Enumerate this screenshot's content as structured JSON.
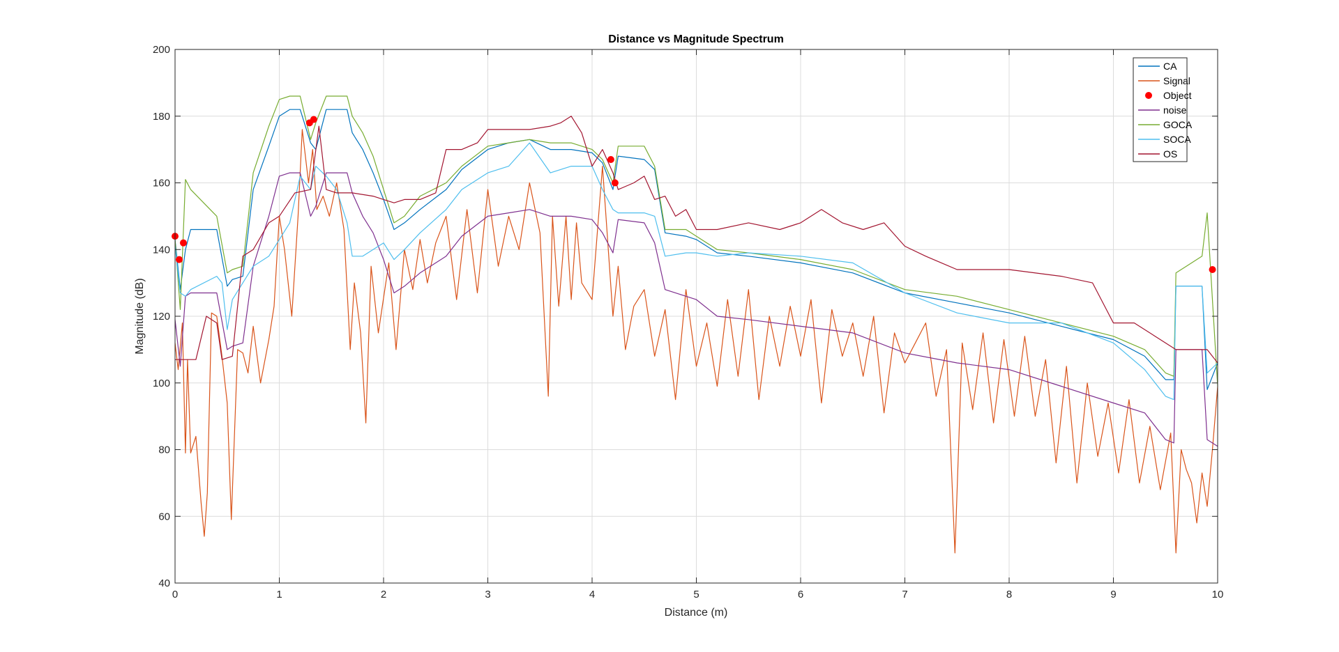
{
  "chart_data": {
    "type": "line",
    "title": "Distance vs Magnitude Spectrum",
    "xlabel": "Distance (m)",
    "ylabel": "Magnitude (dB)",
    "xlim": [
      0,
      10
    ],
    "ylim": [
      40,
      200
    ],
    "xticks": [
      "0",
      "1",
      "2",
      "3",
      "4",
      "5",
      "6",
      "7",
      "8",
      "9",
      "10"
    ],
    "yticks": [
      "40",
      "60",
      "80",
      "100",
      "120",
      "140",
      "160",
      "180",
      "200"
    ],
    "grid": true,
    "legend_position": "top-right",
    "series": [
      {
        "name": "CA",
        "color": "#0072BD",
        "style": "line",
        "x": [
          0,
          0.05,
          0.1,
          0.15,
          0.4,
          0.5,
          0.55,
          0.65,
          0.75,
          0.9,
          1.0,
          1.1,
          1.2,
          1.3,
          1.35,
          1.45,
          1.65,
          1.7,
          1.8,
          1.9,
          2.0,
          2.1,
          2.2,
          2.35,
          2.6,
          2.75,
          3.0,
          3.2,
          3.4,
          3.6,
          3.8,
          4.0,
          4.1,
          4.2,
          4.25,
          4.5,
          4.6,
          4.7,
          4.9,
          5.0,
          5.2,
          5.5,
          6.0,
          6.5,
          7.0,
          7.5,
          8.0,
          8.5,
          9.0,
          9.3,
          9.5,
          9.58,
          9.6,
          9.85,
          9.9,
          10.0
        ],
        "values": [
          143,
          128,
          140,
          146,
          146,
          129,
          131,
          132,
          158,
          171,
          180,
          182,
          182,
          172,
          170,
          182,
          182,
          175,
          170,
          163,
          155,
          146,
          148,
          152,
          158,
          164,
          170,
          172,
          173,
          170,
          170,
          169,
          166,
          158,
          168,
          167,
          164,
          145,
          144,
          143,
          139,
          138,
          136,
          133,
          127,
          124,
          121,
          117,
          113,
          108,
          101,
          101,
          129,
          129,
          98,
          106
        ]
      },
      {
        "name": "Signal",
        "color": "#D95319",
        "style": "line",
        "x": [
          0,
          0.03,
          0.07,
          0.1,
          0.12,
          0.15,
          0.2,
          0.25,
          0.28,
          0.31,
          0.35,
          0.4,
          0.45,
          0.5,
          0.54,
          0.6,
          0.65,
          0.7,
          0.75,
          0.82,
          0.9,
          0.95,
          1.0,
          1.05,
          1.12,
          1.18,
          1.22,
          1.28,
          1.32,
          1.36,
          1.42,
          1.48,
          1.55,
          1.62,
          1.68,
          1.72,
          1.78,
          1.83,
          1.88,
          1.95,
          2.05,
          2.12,
          2.2,
          2.28,
          2.35,
          2.42,
          2.5,
          2.6,
          2.7,
          2.8,
          2.9,
          3.0,
          3.1,
          3.2,
          3.3,
          3.4,
          3.5,
          3.58,
          3.62,
          3.68,
          3.75,
          3.8,
          3.85,
          3.9,
          4.0,
          4.1,
          4.16,
          4.2,
          4.25,
          4.32,
          4.4,
          4.5,
          4.6,
          4.7,
          4.8,
          4.9,
          5.0,
          5.1,
          5.2,
          5.3,
          5.4,
          5.5,
          5.6,
          5.7,
          5.8,
          5.9,
          6.0,
          6.1,
          6.2,
          6.3,
          6.4,
          6.5,
          6.6,
          6.7,
          6.8,
          6.9,
          7.0,
          7.1,
          7.2,
          7.3,
          7.4,
          7.48,
          7.55,
          7.65,
          7.75,
          7.85,
          7.95,
          8.05,
          8.15,
          8.25,
          8.35,
          8.45,
          8.55,
          8.65,
          8.75,
          8.85,
          8.95,
          9.05,
          9.15,
          9.25,
          9.35,
          9.45,
          9.55,
          9.6,
          9.65,
          9.7,
          9.75,
          9.8,
          9.85,
          9.9,
          9.95,
          10.0
        ],
        "values": [
          112,
          104,
          118,
          79,
          107,
          79,
          84,
          64,
          54,
          67,
          121,
          120,
          108,
          94,
          59,
          110,
          109,
          103,
          117,
          100,
          113,
          123,
          150,
          140,
          120,
          150,
          176,
          160,
          170,
          152,
          156,
          150,
          160,
          146,
          110,
          130,
          115,
          88,
          135,
          115,
          136,
          110,
          140,
          128,
          143,
          130,
          142,
          150,
          125,
          152,
          127,
          158,
          135,
          150,
          140,
          160,
          145,
          96,
          150,
          123,
          150,
          125,
          148,
          130,
          125,
          165,
          138,
          120,
          135,
          110,
          123,
          128,
          108,
          122,
          95,
          128,
          105,
          118,
          99,
          125,
          102,
          128,
          95,
          120,
          105,
          123,
          108,
          125,
          94,
          122,
          108,
          118,
          102,
          120,
          91,
          115,
          106,
          112,
          118,
          96,
          110,
          49,
          112,
          92,
          115,
          88,
          113,
          90,
          114,
          90,
          107,
          76,
          105,
          70,
          100,
          78,
          94,
          73,
          95,
          70,
          87,
          68,
          85,
          49,
          80,
          74,
          70,
          58,
          73,
          63,
          80,
          99
        ]
      },
      {
        "name": "Object",
        "color": "#FF0000",
        "style": "marker",
        "x": [
          0.0,
          0.04,
          0.08,
          1.29,
          1.33,
          4.18,
          4.22,
          9.95
        ],
        "values": [
          144,
          137,
          142,
          178,
          179,
          167,
          160,
          134
        ]
      },
      {
        "name": "noise",
        "color": "#7E2F8E",
        "style": "line",
        "x": [
          0,
          0.05,
          0.1,
          0.15,
          0.4,
          0.5,
          0.55,
          0.65,
          0.75,
          0.9,
          1.0,
          1.1,
          1.2,
          1.3,
          1.35,
          1.45,
          1.65,
          1.7,
          1.8,
          1.9,
          2.0,
          2.1,
          2.2,
          2.35,
          2.6,
          2.75,
          3.0,
          3.2,
          3.4,
          3.6,
          3.8,
          4.0,
          4.1,
          4.2,
          4.25,
          4.5,
          4.6,
          4.7,
          4.9,
          5.0,
          5.2,
          5.5,
          6.0,
          6.5,
          7.0,
          7.5,
          8.0,
          8.5,
          9.0,
          9.3,
          9.5,
          9.58,
          9.6,
          9.85,
          9.9,
          10.0
        ],
        "values": [
          119,
          105,
          126,
          127,
          127,
          110,
          111,
          112,
          135,
          150,
          162,
          163,
          163,
          150,
          153,
          163,
          163,
          157,
          150,
          145,
          137,
          127,
          129,
          133,
          138,
          144,
          150,
          151,
          152,
          150,
          150,
          149,
          145,
          139,
          149,
          148,
          142,
          128,
          126,
          125,
          120,
          119,
          117,
          115,
          109,
          106,
          104,
          99,
          94,
          91,
          83,
          82,
          110,
          110,
          83,
          81
        ]
      },
      {
        "name": "GOCA",
        "color": "#77AC30",
        "style": "line",
        "x": [
          0,
          0.05,
          0.1,
          0.15,
          0.4,
          0.5,
          0.55,
          0.65,
          0.75,
          0.9,
          1.0,
          1.1,
          1.2,
          1.3,
          1.35,
          1.45,
          1.65,
          1.7,
          1.8,
          1.9,
          2.0,
          2.1,
          2.2,
          2.35,
          2.6,
          2.75,
          3.0,
          3.2,
          3.4,
          3.6,
          3.8,
          4.0,
          4.1,
          4.2,
          4.25,
          4.5,
          4.6,
          4.7,
          4.9,
          5.0,
          5.2,
          5.5,
          6.0,
          6.5,
          7.0,
          7.5,
          8.0,
          8.5,
          9.0,
          9.3,
          9.5,
          9.58,
          9.6,
          9.85,
          9.9,
          10.0
        ],
        "values": [
          143,
          122,
          161,
          158,
          150,
          133,
          134,
          135,
          163,
          177,
          185,
          186,
          186,
          173,
          178,
          186,
          186,
          180,
          175,
          168,
          158,
          148,
          150,
          156,
          160,
          165,
          171,
          172,
          173,
          172,
          172,
          170,
          167,
          160,
          171,
          171,
          165,
          146,
          146,
          144,
          140,
          139,
          137,
          134,
          128,
          126,
          122,
          118,
          114,
          110,
          103,
          102,
          133,
          138,
          151,
          99
        ]
      },
      {
        "name": "SOCA",
        "color": "#4DBEEE",
        "style": "line",
        "x": [
          0,
          0.05,
          0.1,
          0.15,
          0.4,
          0.45,
          0.5,
          0.55,
          0.65,
          0.75,
          0.9,
          1.0,
          1.1,
          1.2,
          1.3,
          1.35,
          1.45,
          1.55,
          1.65,
          1.7,
          1.8,
          1.9,
          2.0,
          2.1,
          2.2,
          2.35,
          2.6,
          2.75,
          3.0,
          3.2,
          3.4,
          3.6,
          3.8,
          4.0,
          4.1,
          4.2,
          4.25,
          4.5,
          4.6,
          4.7,
          4.9,
          5.0,
          5.2,
          5.5,
          6.0,
          6.5,
          7.0,
          7.5,
          8.0,
          8.5,
          9.0,
          9.3,
          9.5,
          9.58,
          9.6,
          9.85,
          9.9,
          10.0
        ],
        "values": [
          141,
          127,
          126,
          128,
          132,
          130,
          116,
          125,
          130,
          135,
          138,
          143,
          148,
          162,
          158,
          165,
          162,
          158,
          148,
          138,
          138,
          140,
          142,
          137,
          140,
          145,
          152,
          158,
          163,
          165,
          172,
          163,
          165,
          165,
          158,
          152,
          151,
          151,
          150,
          138,
          139,
          139,
          138,
          139,
          138,
          136,
          127,
          121,
          118,
          118,
          112,
          104,
          96,
          95,
          129,
          129,
          103,
          106
        ]
      },
      {
        "name": "OS",
        "color": "#A2142F",
        "style": "line",
        "x": [
          0,
          0.05,
          0.1,
          0.15,
          0.2,
          0.3,
          0.4,
          0.45,
          0.55,
          0.65,
          0.75,
          0.9,
          1.0,
          1.15,
          1.3,
          1.38,
          1.45,
          1.55,
          1.7,
          1.9,
          2.0,
          2.1,
          2.2,
          2.35,
          2.5,
          2.6,
          2.75,
          2.9,
          3.0,
          3.2,
          3.4,
          3.6,
          3.7,
          3.8,
          3.9,
          4.0,
          4.1,
          4.2,
          4.25,
          4.4,
          4.5,
          4.6,
          4.7,
          4.8,
          4.9,
          5.0,
          5.2,
          5.5,
          5.8,
          6.0,
          6.2,
          6.4,
          6.6,
          6.8,
          7.0,
          7.2,
          7.5,
          8.0,
          8.5,
          8.8,
          9.0,
          9.2,
          9.4,
          9.6,
          9.8,
          9.9,
          10.0
        ],
        "values": [
          107,
          107,
          107,
          107,
          107,
          120,
          118,
          107,
          108,
          138,
          140,
          148,
          150,
          157,
          158,
          177,
          158,
          157,
          157,
          156,
          155,
          154,
          155,
          155,
          157,
          170,
          170,
          172,
          176,
          176,
          176,
          177,
          178,
          180,
          175,
          165,
          170,
          163,
          158,
          160,
          162,
          155,
          156,
          150,
          152,
          146,
          146,
          148,
          146,
          148,
          152,
          148,
          146,
          148,
          141,
          138,
          134,
          134,
          132,
          130,
          118,
          118,
          114,
          110,
          110,
          110,
          106
        ]
      }
    ]
  }
}
